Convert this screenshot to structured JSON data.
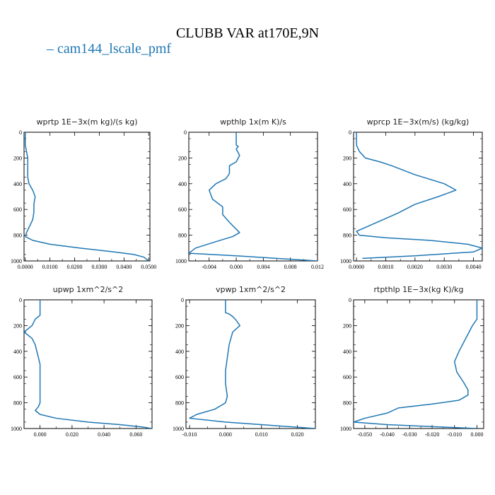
{
  "title": "CLUBB VAR at170E,9N",
  "legend": {
    "label": "cam144_lscale_pmf",
    "marker": "–",
    "color": "#1f77b4"
  },
  "chart_data": [
    {
      "type": "line",
      "title": "wprtp  1E−3x(m kg)/(s kg)",
      "xlim": [
        -0.0005,
        0.0505
      ],
      "ylim": [
        1000,
        0
      ],
      "xticks": [
        0,
        0.01,
        0.02,
        0.03,
        0.04,
        0.05
      ],
      "xticklabels": [
        "0.0000",
        "0.0100",
        "0.0200",
        "0.0300",
        "0.0400",
        "0.0500"
      ],
      "yticks": [
        0,
        200,
        400,
        600,
        800,
        1000
      ],
      "series": [
        {
          "name": "cam144_lscale_pmf",
          "x": [
            0.0,
            0.0,
            0.001,
            0.001,
            0.001,
            0.0015,
            0.003,
            0.004,
            0.0035,
            0.0035,
            0.003,
            0.002,
            0.0005,
            0.0,
            0.003,
            0.01,
            0.022,
            0.036,
            0.044,
            0.048,
            0.05
          ],
          "y": [
            0,
            100,
            200,
            300,
            350,
            400,
            450,
            500,
            560,
            620,
            680,
            720,
            780,
            810,
            840,
            870,
            900,
            930,
            950,
            970,
            1000
          ]
        }
      ]
    },
    {
      "type": "line",
      "title": "wpthlp  1x(m K)/s",
      "xlim": [
        -0.007,
        0.012
      ],
      "ylim": [
        1000,
        0
      ],
      "xticks": [
        -0.004,
        0,
        0.004,
        0.008,
        0.012
      ],
      "xticklabels": [
        "-0.004",
        "0.000",
        "0.004",
        "0.008",
        "0.012"
      ],
      "yticks": [
        0,
        200,
        400,
        600,
        800,
        1000
      ],
      "series": [
        {
          "name": "cam144_lscale_pmf",
          "x": [
            0.0,
            0.0,
            0.0003,
            0.0,
            0.0005,
            0.0,
            -0.001,
            -0.001,
            -0.0015,
            -0.003,
            -0.004,
            -0.0035,
            -0.002,
            -0.002,
            -0.001,
            0.0005,
            -0.0005,
            -0.003,
            -0.006,
            -0.007,
            0.0,
            0.012
          ],
          "y": [
            0,
            100,
            110,
            130,
            180,
            230,
            260,
            320,
            360,
            400,
            450,
            520,
            580,
            640,
            700,
            780,
            810,
            850,
            900,
            940,
            960,
            1000
          ]
        }
      ]
    },
    {
      "type": "line",
      "title": "wprcp  1E−3x(m/s) (kg/kg)",
      "xlim": [
        -0.0001,
        0.0043
      ],
      "ylim": [
        1000,
        0
      ],
      "xticks": [
        0,
        0.001,
        0.002,
        0.003,
        0.004
      ],
      "xticklabels": [
        "0.0000",
        "0.0010",
        "0.0020",
        "0.0030",
        "0.0040"
      ],
      "yticks": [
        0,
        200,
        400,
        600,
        800,
        1000
      ],
      "series": [
        {
          "name": "cam144_lscale_pmf",
          "x": [
            0.0,
            0.0,
            0.0001,
            0.0003,
            0.0008,
            0.0012,
            0.002,
            0.003,
            0.0034,
            0.0028,
            0.002,
            0.0014,
            0.0008,
            0.0003,
            0.0,
            0.0001,
            0.001,
            0.0025,
            0.0038,
            0.0043,
            0.004,
            0.002,
            0.0002
          ],
          "y": [
            0,
            100,
            150,
            200,
            230,
            260,
            330,
            400,
            450,
            500,
            560,
            630,
            690,
            740,
            770,
            800,
            820,
            840,
            870,
            900,
            930,
            960,
            980
          ]
        }
      ]
    },
    {
      "type": "line",
      "title": "upwp  1xm^2/s^2",
      "xlim": [
        -0.01,
        0.07
      ],
      "ylim": [
        1000,
        0
      ],
      "xticks": [
        0,
        0.02,
        0.04,
        0.06
      ],
      "xticklabels": [
        "0.000",
        "0.020",
        "0.040",
        "0.060"
      ],
      "yticks": [
        0,
        200,
        400,
        600,
        800,
        1000
      ],
      "series": [
        {
          "name": "cam144_lscale_pmf",
          "x": [
            0.0,
            0.0,
            0.0,
            -0.003,
            -0.005,
            -0.01,
            -0.005,
            -0.003,
            -0.002,
            0.0,
            0.0,
            0.0,
            0.0,
            -0.001,
            -0.003,
            0.0,
            0.01,
            0.03,
            0.05,
            0.065,
            0.07
          ],
          "y": [
            0,
            100,
            120,
            150,
            200,
            250,
            300,
            350,
            400,
            500,
            600,
            700,
            800,
            830,
            860,
            890,
            920,
            950,
            970,
            990,
            1000
          ]
        }
      ]
    },
    {
      "type": "line",
      "title": "vpwp  1xm^2/s^2",
      "xlim": [
        -0.011,
        0.025
      ],
      "ylim": [
        1000,
        0
      ],
      "xticks": [
        -0.01,
        0,
        0.01,
        0.02
      ],
      "xticklabels": [
        "-0.010",
        "0.000",
        "0.010",
        "0.020"
      ],
      "yticks": [
        0,
        200,
        400,
        600,
        800,
        1000
      ],
      "series": [
        {
          "name": "cam144_lscale_pmf",
          "x": [
            0.0,
            0.0,
            0.001,
            0.002,
            0.003,
            0.004,
            0.002,
            0.0015,
            0.001,
            0.0005,
            0.0,
            0.0,
            0.0005,
            0.0,
            -0.003,
            -0.008,
            -0.01,
            0.0,
            0.015,
            0.025
          ],
          "y": [
            0,
            100,
            110,
            130,
            160,
            200,
            250,
            300,
            350,
            450,
            550,
            650,
            750,
            800,
            850,
            890,
            920,
            950,
            980,
            1000
          ]
        }
      ]
    },
    {
      "type": "line",
      "title": "rtpthlp  1E−3x(kg K)/kg",
      "xlim": [
        -0.055,
        0.003
      ],
      "ylim": [
        1000,
        0
      ],
      "xticks": [
        -0.05,
        -0.04,
        -0.03,
        -0.02,
        -0.01,
        0
      ],
      "xticklabels": [
        "-0.050",
        "-0.040",
        "-0.030",
        "-0.020",
        "-0.010",
        "0.000"
      ],
      "yticks": [
        0,
        200,
        400,
        600,
        800,
        1000
      ],
      "series": [
        {
          "name": "cam144_lscale_pmf",
          "x": [
            0.0,
            0.0,
            0.0,
            -0.002,
            -0.005,
            -0.008,
            -0.01,
            -0.009,
            -0.006,
            -0.004,
            -0.004,
            -0.008,
            -0.02,
            -0.035,
            -0.04,
            -0.05,
            -0.055,
            -0.04,
            0.0
          ],
          "y": [
            0,
            100,
            150,
            200,
            300,
            400,
            480,
            560,
            640,
            700,
            740,
            780,
            810,
            840,
            880,
            920,
            950,
            970,
            1000
          ]
        }
      ]
    }
  ]
}
